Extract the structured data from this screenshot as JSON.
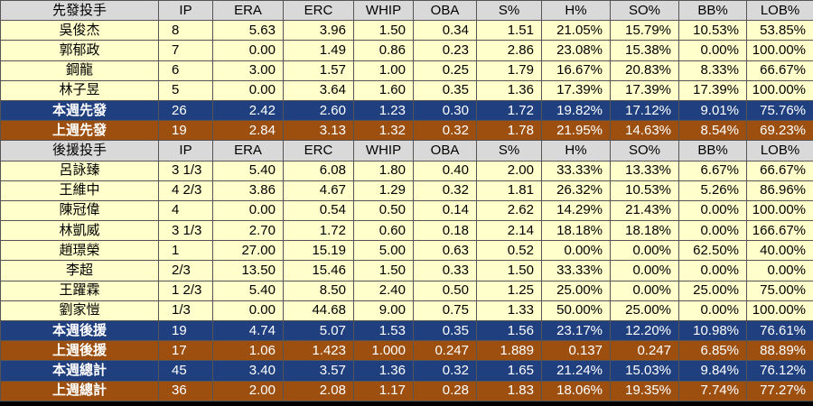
{
  "columns": [
    "IP",
    "ERA",
    "ERC",
    "WHIP",
    "OBA",
    "S%",
    "H%",
    "SO%",
    "BB%",
    "LOB%"
  ],
  "starters_header": "先發投手",
  "relievers_header": "後援投手",
  "starters": [
    {
      "name": "吳俊杰",
      "vals": [
        "8",
        "5.63",
        "3.96",
        "1.50",
        "0.34",
        "1.51",
        "21.05%",
        "15.79%",
        "10.53%",
        "53.85%"
      ]
    },
    {
      "name": "郭郁政",
      "vals": [
        "7",
        "0.00",
        "1.49",
        "0.86",
        "0.23",
        "2.86",
        "23.08%",
        "15.38%",
        "0.00%",
        "100.00%"
      ]
    },
    {
      "name": "鋼龍",
      "vals": [
        "6",
        "3.00",
        "1.57",
        "1.00",
        "0.25",
        "1.79",
        "16.67%",
        "20.83%",
        "8.33%",
        "66.67%"
      ]
    },
    {
      "name": "林子昱",
      "vals": [
        "5",
        "0.00",
        "3.64",
        "1.60",
        "0.35",
        "1.36",
        "17.39%",
        "17.39%",
        "17.39%",
        "100.00%"
      ]
    }
  ],
  "starters_totals": [
    {
      "label": "本週先發",
      "style": "blue",
      "vals": [
        "26",
        "2.42",
        "2.60",
        "1.23",
        "0.30",
        "1.72",
        "19.82%",
        "17.12%",
        "9.01%",
        "75.76%"
      ]
    },
    {
      "label": "上週先發",
      "style": "brown",
      "vals": [
        "19",
        "2.84",
        "3.13",
        "1.32",
        "0.32",
        "1.78",
        "21.95%",
        "14.63%",
        "8.54%",
        "69.23%"
      ]
    }
  ],
  "relievers": [
    {
      "name": "呂詠臻",
      "vals": [
        "3 1/3",
        "5.40",
        "6.08",
        "1.80",
        "0.40",
        "2.00",
        "33.33%",
        "13.33%",
        "6.67%",
        "66.67%"
      ]
    },
    {
      "name": "王維中",
      "vals": [
        "4 2/3",
        "3.86",
        "4.67",
        "1.29",
        "0.32",
        "1.81",
        "26.32%",
        "10.53%",
        "5.26%",
        "86.96%"
      ]
    },
    {
      "name": "陳冠偉",
      "vals": [
        "4",
        "0.00",
        "0.54",
        "0.50",
        "0.14",
        "2.62",
        "14.29%",
        "21.43%",
        "0.00%",
        "100.00%"
      ]
    },
    {
      "name": "林凱威",
      "vals": [
        "3 1/3",
        "2.70",
        "1.72",
        "0.60",
        "0.18",
        "2.14",
        "18.18%",
        "18.18%",
        "0.00%",
        "166.67%"
      ]
    },
    {
      "name": "趙璟榮",
      "vals": [
        "1",
        "27.00",
        "15.19",
        "5.00",
        "0.63",
        "0.52",
        "0.00%",
        "0.00%",
        "62.50%",
        "40.00%"
      ]
    },
    {
      "name": "李超",
      "vals": [
        "2/3",
        "13.50",
        "15.46",
        "1.50",
        "0.33",
        "1.50",
        "33.33%",
        "0.00%",
        "0.00%",
        "0.00%"
      ]
    },
    {
      "name": "王躍霖",
      "vals": [
        "1 2/3",
        "5.40",
        "8.50",
        "2.40",
        "0.50",
        "1.25",
        "25.00%",
        "0.00%",
        "25.00%",
        "75.00%"
      ]
    },
    {
      "name": "劉家愷",
      "vals": [
        "1/3",
        "0.00",
        "44.68",
        "9.00",
        "0.75",
        "1.33",
        "50.00%",
        "25.00%",
        "0.00%",
        "100.00%"
      ]
    }
  ],
  "relievers_totals": [
    {
      "label": "本週後援",
      "style": "blue",
      "vals": [
        "19",
        "4.74",
        "5.07",
        "1.53",
        "0.35",
        "1.56",
        "23.17%",
        "12.20%",
        "10.98%",
        "76.61%"
      ]
    },
    {
      "label": "上週後援",
      "style": "brown",
      "vals": [
        "17",
        "1.06",
        "1.423",
        "1.000",
        "0.247",
        "1.889",
        "0.137",
        "0.247",
        "6.85%",
        "88.89%"
      ]
    },
    {
      "label": "本週總計",
      "style": "blue",
      "vals": [
        "45",
        "3.40",
        "3.57",
        "1.36",
        "0.32",
        "1.65",
        "21.24%",
        "15.03%",
        "9.84%",
        "76.12%"
      ]
    },
    {
      "label": "上週總計",
      "style": "brown",
      "vals": [
        "36",
        "2.00",
        "2.08",
        "1.17",
        "0.28",
        "1.83",
        "18.06%",
        "19.35%",
        "7.74%",
        "77.27%"
      ]
    }
  ]
}
